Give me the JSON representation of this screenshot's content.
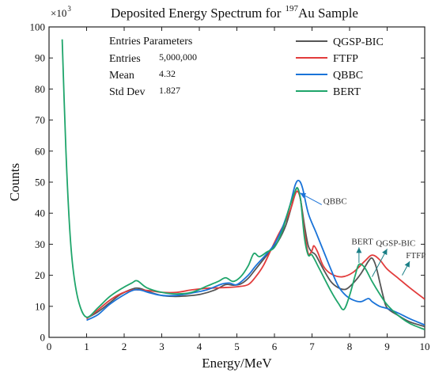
{
  "chart_data": {
    "type": "line",
    "title": "Deposited Energy Spectrum for",
    "title_sup": "197",
    "title_tail": "Au Sample",
    "xlabel": "Energy/MeV",
    "ylabel": "Counts",
    "y_multiplier_base": "×10",
    "y_multiplier_exp": "3",
    "xlim": [
      0,
      10
    ],
    "ylim": [
      0,
      100
    ],
    "xticks": [
      0,
      1,
      2,
      3,
      4,
      5,
      6,
      7,
      8,
      9,
      10
    ],
    "yticks": [
      0,
      10,
      20,
      30,
      40,
      50,
      60,
      70,
      80,
      90,
      100
    ],
    "legend_position": "top-right",
    "stats_box": {
      "header": "Entries Parameters",
      "rows": [
        {
          "label": "Entries",
          "value": "5,000,000"
        },
        {
          "label": "Mean",
          "value": "4.32"
        },
        {
          "label": "Std Dev",
          "value": "1.827"
        }
      ]
    },
    "series": [
      {
        "name": "QGSP-BIC",
        "color": "#555555",
        "points": [
          [
            1.0,
            6.2
          ],
          [
            1.3,
            8.2
          ],
          [
            1.6,
            11
          ],
          [
            1.9,
            13.8
          ],
          [
            2.2,
            15.5
          ],
          [
            2.4,
            15.8
          ],
          [
            2.7,
            14.5
          ],
          [
            3.0,
            13.5
          ],
          [
            3.3,
            13.2
          ],
          [
            3.6,
            13.3
          ],
          [
            4.0,
            13.8
          ],
          [
            4.4,
            15.2
          ],
          [
            4.7,
            17.0
          ],
          [
            4.9,
            16.8
          ],
          [
            5.1,
            17.2
          ],
          [
            5.3,
            19.0
          ],
          [
            5.5,
            22
          ],
          [
            5.7,
            25
          ],
          [
            5.9,
            28
          ],
          [
            6.1,
            31
          ],
          [
            6.3,
            36
          ],
          [
            6.45,
            42
          ],
          [
            6.55,
            47
          ],
          [
            6.62,
            48
          ],
          [
            6.7,
            44
          ],
          [
            6.8,
            36
          ],
          [
            6.9,
            29.5
          ],
          [
            7.0,
            27.5
          ],
          [
            7.1,
            26.5
          ],
          [
            7.3,
            22
          ],
          [
            7.5,
            18
          ],
          [
            7.7,
            16
          ],
          [
            7.9,
            15.5
          ],
          [
            8.1,
            17.5
          ],
          [
            8.3,
            20.5
          ],
          [
            8.5,
            24.5
          ],
          [
            8.6,
            25.5
          ],
          [
            8.7,
            23
          ],
          [
            8.8,
            18
          ],
          [
            8.9,
            13
          ],
          [
            9.0,
            9.5
          ],
          [
            9.3,
            7.0
          ],
          [
            9.6,
            5.0
          ],
          [
            10.0,
            3.5
          ]
        ]
      },
      {
        "name": "FTFP",
        "color": "#e23c3c",
        "points": [
          [
            1.0,
            6.0
          ],
          [
            1.3,
            8.8
          ],
          [
            1.6,
            11.8
          ],
          [
            1.9,
            14
          ],
          [
            2.2,
            15.2
          ],
          [
            2.4,
            15.3
          ],
          [
            2.7,
            15
          ],
          [
            3.0,
            14.5
          ],
          [
            3.4,
            14.5
          ],
          [
            3.8,
            15.3
          ],
          [
            4.2,
            15.8
          ],
          [
            4.6,
            16.0
          ],
          [
            5.0,
            16.3
          ],
          [
            5.3,
            17.0
          ],
          [
            5.5,
            19.5
          ],
          [
            5.7,
            23
          ],
          [
            5.9,
            28
          ],
          [
            6.1,
            33
          ],
          [
            6.3,
            37.5
          ],
          [
            6.45,
            42
          ],
          [
            6.55,
            46
          ],
          [
            6.62,
            47
          ],
          [
            6.7,
            44
          ],
          [
            6.8,
            34
          ],
          [
            6.9,
            27
          ],
          [
            7.0,
            28
          ],
          [
            7.05,
            29.5
          ],
          [
            7.15,
            27.5
          ],
          [
            7.3,
            23
          ],
          [
            7.5,
            20.5
          ],
          [
            7.8,
            19.5
          ],
          [
            8.1,
            21
          ],
          [
            8.4,
            24.5
          ],
          [
            8.6,
            26.5
          ],
          [
            8.8,
            25
          ],
          [
            9.0,
            22
          ],
          [
            9.3,
            19
          ],
          [
            9.6,
            16
          ],
          [
            10.0,
            12.3
          ]
        ]
      },
      {
        "name": "QBBC",
        "color": "#1a73d8",
        "points": [
          [
            1.0,
            5.5
          ],
          [
            1.3,
            7.3
          ],
          [
            1.6,
            10.5
          ],
          [
            1.9,
            13
          ],
          [
            2.2,
            15
          ],
          [
            2.4,
            15.3
          ],
          [
            2.7,
            14.3
          ],
          [
            3.0,
            13.5
          ],
          [
            3.4,
            13.5
          ],
          [
            3.8,
            14.3
          ],
          [
            4.2,
            15.3
          ],
          [
            4.6,
            17.2
          ],
          [
            4.8,
            17.5
          ],
          [
            5.0,
            17.0
          ],
          [
            5.3,
            20
          ],
          [
            5.5,
            23
          ],
          [
            5.8,
            27
          ],
          [
            6.0,
            30
          ],
          [
            6.2,
            35
          ],
          [
            6.4,
            42
          ],
          [
            6.55,
            49
          ],
          [
            6.65,
            50.5
          ],
          [
            6.75,
            48
          ],
          [
            6.9,
            40
          ],
          [
            7.1,
            34
          ],
          [
            7.3,
            28
          ],
          [
            7.5,
            22
          ],
          [
            7.7,
            16.5
          ],
          [
            7.9,
            13.5
          ],
          [
            8.1,
            12
          ],
          [
            8.3,
            11.5
          ],
          [
            8.5,
            12.5
          ],
          [
            8.6,
            11.5
          ],
          [
            8.8,
            10
          ],
          [
            9.0,
            9.3
          ],
          [
            9.3,
            7.8
          ],
          [
            9.6,
            6.0
          ],
          [
            10.0,
            4.0
          ]
        ]
      },
      {
        "name": "BERT",
        "color": "#1fa56b",
        "points": [
          [
            0.35,
            96
          ],
          [
            0.45,
            60
          ],
          [
            0.55,
            35
          ],
          [
            0.65,
            21
          ],
          [
            0.8,
            11
          ],
          [
            1.0,
            6.5
          ],
          [
            1.3,
            9.5
          ],
          [
            1.6,
            13
          ],
          [
            1.9,
            15.5
          ],
          [
            2.2,
            17.5
          ],
          [
            2.35,
            18.2
          ],
          [
            2.6,
            16
          ],
          [
            3.0,
            14.5
          ],
          [
            3.4,
            14
          ],
          [
            3.8,
            14.5
          ],
          [
            4.2,
            16.5
          ],
          [
            4.5,
            18
          ],
          [
            4.7,
            19.2
          ],
          [
            4.9,
            18
          ],
          [
            5.1,
            19.5
          ],
          [
            5.3,
            23
          ],
          [
            5.45,
            27
          ],
          [
            5.6,
            26
          ],
          [
            5.8,
            27.5
          ],
          [
            6.0,
            29
          ],
          [
            6.2,
            34
          ],
          [
            6.4,
            42
          ],
          [
            6.55,
            47
          ],
          [
            6.62,
            48
          ],
          [
            6.7,
            44
          ],
          [
            6.8,
            32
          ],
          [
            6.9,
            26.5
          ],
          [
            7.0,
            26.5
          ],
          [
            7.2,
            22
          ],
          [
            7.5,
            15
          ],
          [
            7.7,
            11
          ],
          [
            7.85,
            9
          ],
          [
            8.0,
            13.5
          ],
          [
            8.15,
            20
          ],
          [
            8.25,
            23.5
          ],
          [
            8.4,
            22.5
          ],
          [
            8.6,
            18
          ],
          [
            8.8,
            14
          ],
          [
            9.0,
            10.5
          ],
          [
            9.3,
            7
          ],
          [
            9.6,
            4.5
          ],
          [
            10.0,
            2.5
          ]
        ]
      }
    ],
    "annotations": [
      {
        "text": "QBBC",
        "x": 7.3,
        "y": 43,
        "arrow_to": [
          6.68,
          46.5
        ],
        "color": "#333333",
        "arrow_color": "#1a73d8"
      },
      {
        "text": "BERT",
        "x": 8.05,
        "y": 30,
        "arrow_from": [
          8.25,
          24
        ],
        "arrow_to": [
          8.25,
          29
        ],
        "color": "#333333",
        "arrow_color": "#1a7f86"
      },
      {
        "text": "QGSP-BIC",
        "x": 8.7,
        "y": 29.5,
        "arrow_from": [
          8.6,
          19.5
        ],
        "arrow_to": [
          9.0,
          28.5
        ],
        "color": "#333333",
        "arrow_color": "#1a7f86"
      },
      {
        "text": "FTFP",
        "x": 9.5,
        "y": 25.5,
        "arrow_from": [
          9.4,
          20
        ],
        "arrow_to": [
          9.6,
          24.5
        ],
        "color": "#333333",
        "arrow_color": "#1a7f86"
      }
    ]
  }
}
